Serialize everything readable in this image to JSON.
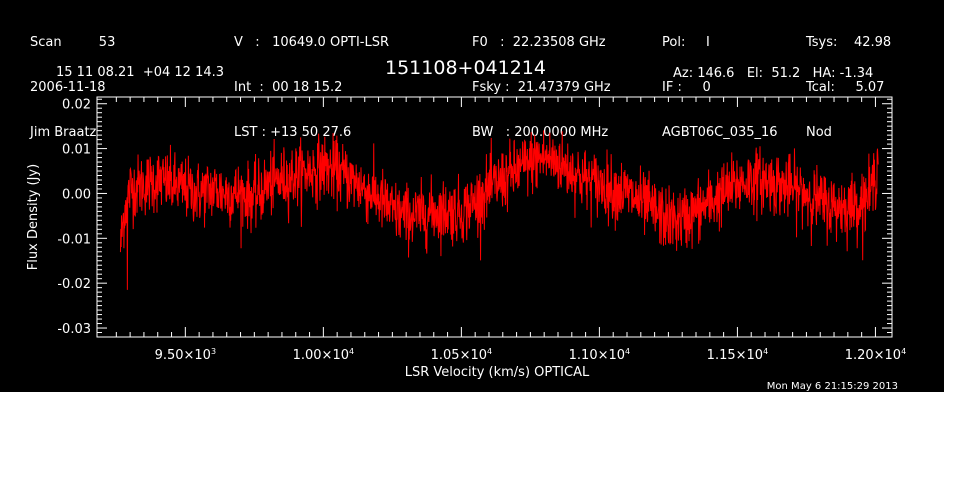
{
  "header": {
    "col1": [
      "Scan         53",
      "2006-11-18",
      "Jim Braatz"
    ],
    "col2": [
      "V   :   10649.0 OPTI-LSR",
      "Int  :  00 18 15.2",
      "LST : +13 50 27.6"
    ],
    "col3": [
      "F0   :  22.23508 GHz",
      "Fsky :  21.47379 GHz",
      "BW   : 200.0000 MHz"
    ],
    "col4": [
      "Pol:     I",
      "IF :     0",
      "AGBT06C_035_16"
    ],
    "col5": [
      "Tsys:    42.98",
      "Tcal:     5.07",
      "Nod"
    ],
    "coords": "15 11 08.21  +04 12 14.3",
    "source": "151108+041214",
    "azel": "Az: 146.6   El:  51.2   HA: -1.34"
  },
  "footer": {
    "timestamp": "Mon May  6 21:15:29 2013"
  },
  "colors": {
    "background": "#000000",
    "axes": "#ffffff",
    "trace": "#ff0000"
  },
  "chart_data": {
    "type": "line",
    "xlabel": "LSR Velocity (km/s) OPTICAL",
    "ylabel": "Flux Density (Jy)",
    "xlim": [
      9180,
      12060
    ],
    "ylim": [
      -0.032,
      0.0215
    ],
    "x_ticks": [
      9500,
      10000,
      10500,
      11000,
      11500,
      12000
    ],
    "x_tick_labels": [
      {
        "mantissa": "9.50×10",
        "exp": "3"
      },
      {
        "mantissa": "1.00×10",
        "exp": "4"
      },
      {
        "mantissa": "1.05×10",
        "exp": "4"
      },
      {
        "mantissa": "1.10×10",
        "exp": "4"
      },
      {
        "mantissa": "1.15×10",
        "exp": "4"
      },
      {
        "mantissa": "1.20×10",
        "exp": "4"
      }
    ],
    "y_ticks": [
      0.02,
      0.01,
      0.0,
      -0.01,
      -0.02,
      -0.03
    ],
    "y_tick_labels": [
      "0.02",
      "0.01",
      "0.00",
      "-0.01",
      "-0.02",
      "-0.03"
    ],
    "series": [
      {
        "x": [
          9265,
          9275,
          9285,
          9300,
          9350,
          9400,
          9450,
          9500,
          9550,
          9600,
          9650,
          9700,
          9750,
          9800,
          9850,
          9900,
          9950,
          10000,
          10050,
          10100,
          10150,
          10200,
          10250,
          10300,
          10350,
          10400,
          10450,
          10500,
          10550,
          10600,
          10650,
          10700,
          10750,
          10800,
          10850,
          10900,
          10950,
          11000,
          11050,
          11100,
          11150,
          11200,
          11250,
          11300,
          11350,
          11400,
          11450,
          11500,
          11550,
          11600,
          11650,
          11700,
          11750,
          11800,
          11850,
          11900,
          11950,
          11980,
          12000,
          12010
        ],
        "y": [
          -0.012,
          -0.006,
          -0.002,
          0.001,
          0.002,
          0.003,
          0.002,
          0.001,
          0.0,
          0.001,
          0.0,
          0.0,
          -0.001,
          0.002,
          0.003,
          0.004,
          0.005,
          0.006,
          0.005,
          0.003,
          0.001,
          -0.001,
          -0.004,
          -0.005,
          -0.005,
          -0.004,
          -0.004,
          -0.004,
          -0.002,
          0.001,
          0.003,
          0.005,
          0.007,
          0.008,
          0.007,
          0.005,
          0.003,
          0.002,
          0.001,
          0.0,
          -0.002,
          -0.004,
          -0.006,
          -0.006,
          -0.004,
          -0.002,
          0.0,
          0.002,
          0.003,
          0.003,
          0.002,
          0.001,
          0.0,
          -0.002,
          -0.003,
          -0.003,
          -0.002,
          0.0,
          0.004,
          0.008
        ],
        "noise_rms": 0.0035
      }
    ]
  }
}
